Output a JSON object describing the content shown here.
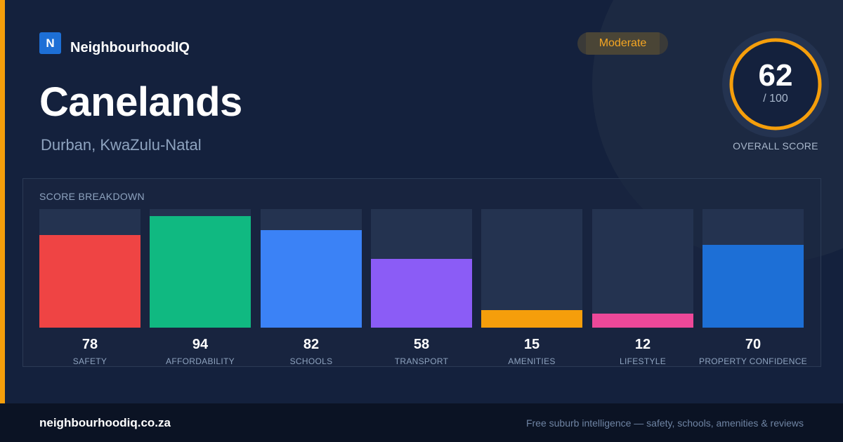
{
  "brand": {
    "logo_letter": "N",
    "name": "NeighbourhoodIQ"
  },
  "suburb": {
    "name": "Canelands",
    "location": "Durban, KwaZulu-Natal"
  },
  "rating": {
    "label": "Moderate"
  },
  "overall": {
    "score": "62",
    "max": "/ 100",
    "caption": "OVERALL SCORE",
    "fraction": 0.62
  },
  "breakdown": {
    "heading": "SCORE BREAKDOWN",
    "items": [
      {
        "value": "78",
        "label": "SAFETY",
        "color": "#ef4444",
        "fill": 0.78
      },
      {
        "value": "94",
        "label": "AFFORDABILITY",
        "color": "#10b981",
        "fill": 0.94
      },
      {
        "value": "82",
        "label": "SCHOOLS",
        "color": "#3b82f6",
        "fill": 0.82
      },
      {
        "value": "58",
        "label": "TRANSPORT",
        "color": "#8b5cf6",
        "fill": 0.58
      },
      {
        "value": "15",
        "label": "AMENITIES",
        "color": "#f59e0b",
        "fill": 0.15
      },
      {
        "value": "12",
        "label": "LIFESTYLE",
        "color": "#ec4899",
        "fill": 0.12
      },
      {
        "value": "70",
        "label": "PROPERTY CONFIDENCE",
        "color": "#1d6fd6",
        "fill": 0.7
      }
    ]
  },
  "footer": {
    "domain": "neighbourhoodiq.co.za",
    "tagline": "Free suburb intelligence — safety, schools, amenities & reviews"
  },
  "colors": {
    "accent": "#f59e0b",
    "ring": "#f59e0b",
    "brand": "#1d6fd6",
    "background": "#14213d"
  }
}
